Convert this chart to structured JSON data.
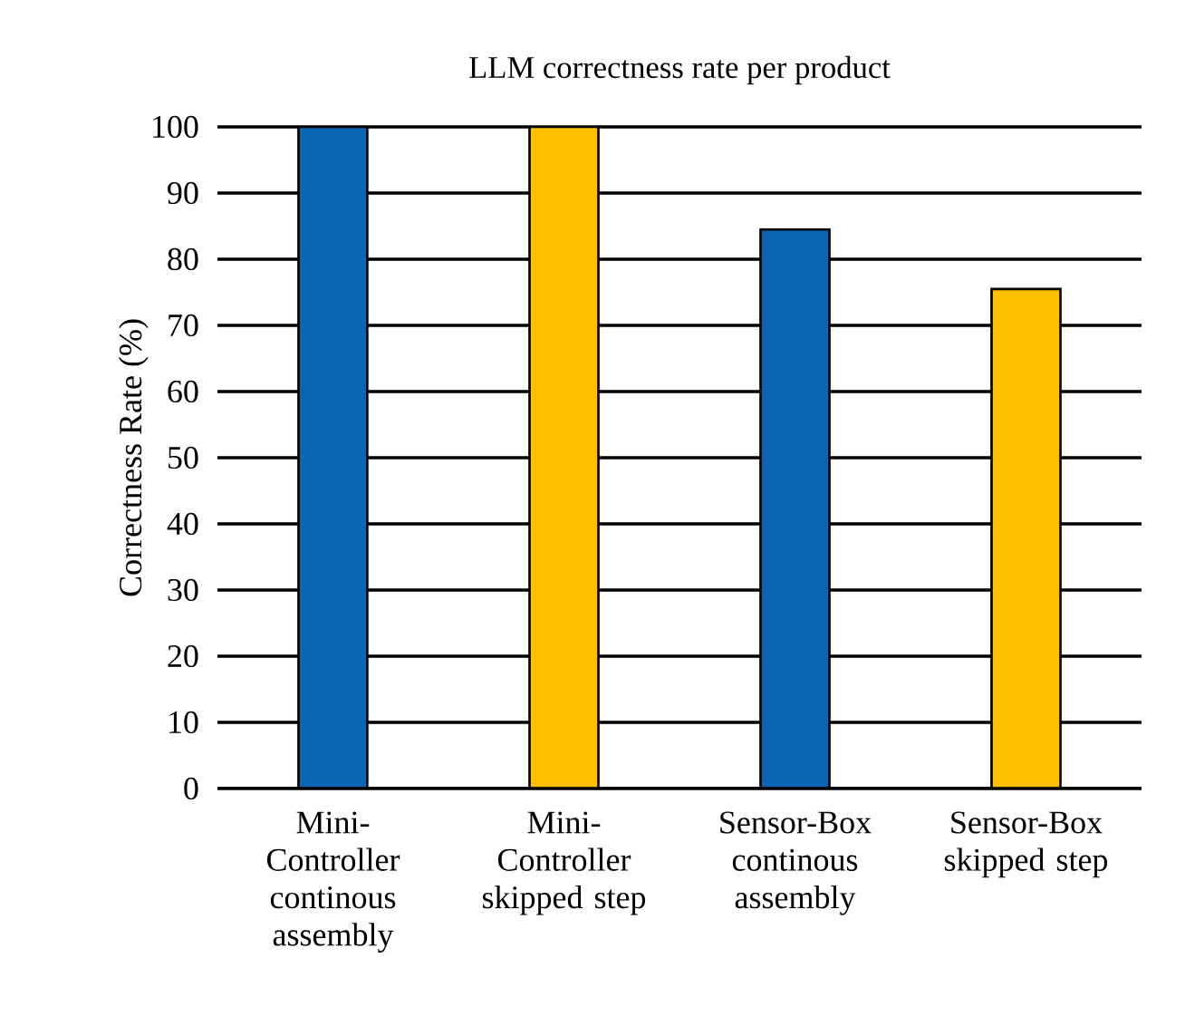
{
  "chart_data": {
    "type": "bar",
    "title": "LLM correctness rate per product",
    "ylabel": "Correctness Rate (%)",
    "categories": [
      "Mini-Controller continous assembly",
      "Mini-Controller skipped step",
      "Sensor-Box continous assembly",
      "Sensor-Box skipped step"
    ],
    "values": [
      100,
      100,
      84.5,
      75.5
    ],
    "colors": [
      "#0a66b4",
      "#ffc000",
      "#0a66b4",
      "#ffc000"
    ],
    "ylim": [
      0,
      100
    ],
    "yticks": [
      0,
      10,
      20,
      30,
      40,
      50,
      60,
      70,
      80,
      90,
      100
    ],
    "grid": "y"
  }
}
